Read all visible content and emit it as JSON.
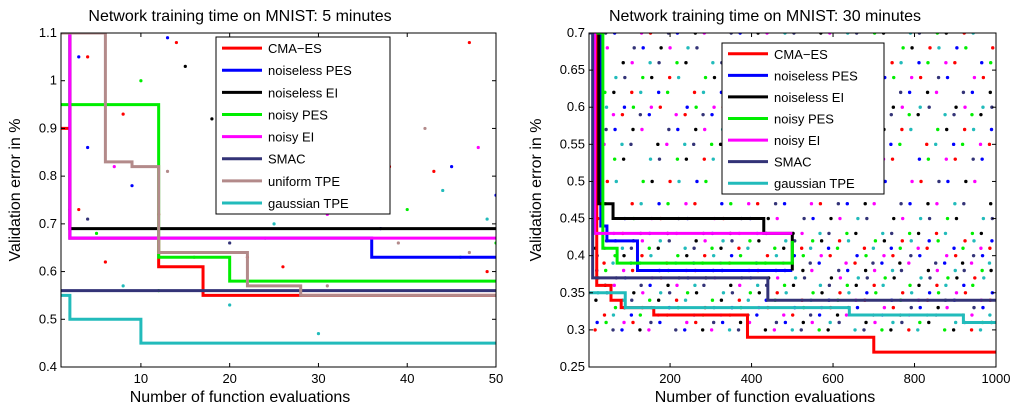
{
  "chart_data": [
    {
      "type": "line",
      "title": "Network training time on MNIST: 5 minutes",
      "xlabel": "Number of function evaluations",
      "ylabel": "Validation error in %",
      "xlim": [
        1,
        50
      ],
      "ylim": [
        0.4,
        1.1
      ],
      "xticks": [
        10,
        20,
        30,
        40,
        50
      ],
      "yticks": [
        0.4,
        0.5,
        0.6,
        0.7,
        0.8,
        0.9,
        1.0,
        1.1
      ],
      "ytick_labels": [
        "0.4",
        "0.5",
        "0.6",
        "0.7",
        "0.8",
        "0.9",
        "1",
        "1.1"
      ],
      "legend_position": "top-right",
      "series": [
        {
          "name": "CMA−ES",
          "color": "#ff0000",
          "steps": [
            [
              1,
              0.9
            ],
            [
              2,
              0.67
            ],
            [
              12,
              0.61
            ],
            [
              17,
              0.55
            ],
            [
              50,
              0.55
            ]
          ]
        },
        {
          "name": "noiseless PES",
          "color": "#0000ff",
          "steps": [
            [
              1,
              1.1
            ],
            [
              2,
              0.67
            ],
            [
              36,
              0.63
            ],
            [
              50,
              0.63
            ]
          ]
        },
        {
          "name": "noiseless EI",
          "color": "#000000",
          "steps": [
            [
              1,
              1.1
            ],
            [
              2,
              0.69
            ],
            [
              50,
              0.69
            ]
          ]
        },
        {
          "name": "noisy PES",
          "color": "#00ee00",
          "steps": [
            [
              1,
              0.95
            ],
            [
              11,
              0.95
            ],
            [
              12,
              0.63
            ],
            [
              20,
              0.58
            ],
            [
              50,
              0.58
            ]
          ]
        },
        {
          "name": "noisy EI",
          "color": "#ff00ff",
          "steps": [
            [
              1,
              1.1
            ],
            [
              2,
              0.67
            ],
            [
              50,
              0.67
            ]
          ]
        },
        {
          "name": "SMAC",
          "color": "#333377",
          "steps": [
            [
              1,
              0.56
            ],
            [
              50,
              0.56
            ]
          ]
        },
        {
          "name": "uniform TPE",
          "color": "#b38a8a",
          "steps": [
            [
              1,
              1.1
            ],
            [
              6,
              1.1
            ],
            [
              6,
              0.83
            ],
            [
              9,
              0.82
            ],
            [
              12,
              0.64
            ],
            [
              22,
              0.57
            ],
            [
              28,
              0.55
            ],
            [
              50,
              0.55
            ]
          ]
        },
        {
          "name": "gaussian TPE",
          "color": "#22bbbb",
          "steps": [
            [
              1,
              0.55
            ],
            [
              2,
              0.5
            ],
            [
              10,
              0.45
            ],
            [
              50,
              0.45
            ]
          ]
        }
      ],
      "scatter": [
        {
          "color": "#ff0000",
          "points": [
            [
              3,
              0.73
            ],
            [
              4,
              1.05
            ],
            [
              6,
              0.62
            ],
            [
              8,
              0.93
            ],
            [
              12,
              0.72
            ],
            [
              14,
              1.08
            ],
            [
              19,
              1.01
            ],
            [
              22,
              0.63
            ],
            [
              26,
              0.61
            ],
            [
              28,
              0.55
            ],
            [
              33,
              0.97
            ],
            [
              38,
              0.82
            ],
            [
              43,
              0.81
            ],
            [
              47,
              1.08
            ],
            [
              49,
              0.6
            ]
          ]
        },
        {
          "color": "#0000ff",
          "points": [
            [
              3,
              1.05
            ],
            [
              4,
              0.86
            ],
            [
              9,
              0.78
            ],
            [
              13,
              1.09
            ],
            [
              28,
              0.74
            ],
            [
              37,
              0.69
            ],
            [
              45,
              0.82
            ],
            [
              50,
              0.76
            ]
          ]
        },
        {
          "color": "#000000",
          "points": [
            [
              15,
              1.03
            ],
            [
              18,
              0.92
            ],
            [
              27,
              0.86
            ]
          ]
        },
        {
          "color": "#00ee00",
          "points": [
            [
              5,
              0.68
            ],
            [
              10,
              1.0
            ],
            [
              12,
              0.56
            ],
            [
              19,
              0.76
            ],
            [
              24,
              0.67
            ],
            [
              40,
              0.73
            ],
            [
              46,
              0.63
            ],
            [
              50,
              0.66
            ]
          ]
        },
        {
          "color": "#ff00ff",
          "points": [
            [
              2,
              0.73
            ],
            [
              7,
              0.82
            ],
            [
              19,
              0.95
            ],
            [
              26,
              0.93
            ],
            [
              31,
              0.72
            ],
            [
              35,
              1.01
            ],
            [
              48,
              0.86
            ]
          ]
        },
        {
          "color": "#333377",
          "points": [
            [
              4,
              0.71
            ],
            [
              20,
              0.66
            ],
            [
              36,
              0.75
            ]
          ]
        },
        {
          "color": "#b38a8a",
          "points": [
            [
              13,
              0.81
            ],
            [
              16,
              0.63
            ],
            [
              31,
              0.57
            ],
            [
              39,
              0.66
            ],
            [
              42,
              0.9
            ],
            [
              47,
              0.64
            ]
          ]
        },
        {
          "color": "#22bbbb",
          "points": [
            [
              8,
              0.57
            ],
            [
              20,
              0.53
            ],
            [
              25,
              0.7
            ],
            [
              30,
              0.47
            ],
            [
              44,
              0.77
            ],
            [
              49,
              0.71
            ]
          ]
        }
      ]
    },
    {
      "type": "line",
      "title": "Network training time on MNIST: 30 minutes",
      "xlabel": "Number of function evaluations",
      "ylabel": "Validation error in %",
      "xlim": [
        1,
        1000
      ],
      "ylim": [
        0.25,
        0.7
      ],
      "xticks": [
        200,
        400,
        600,
        800,
        1000
      ],
      "yticks": [
        0.25,
        0.3,
        0.35,
        0.4,
        0.45,
        0.5,
        0.55,
        0.6,
        0.65,
        0.7
      ],
      "ytick_labels": [
        "0.25",
        "0.3",
        "0.35",
        "0.4",
        "0.45",
        "0.5",
        "0.55",
        "0.6",
        "0.65",
        "0.7"
      ],
      "legend_position": "top-right",
      "series": [
        {
          "name": "CMA−ES",
          "color": "#ff0000",
          "steps": [
            [
              1,
              0.7
            ],
            [
              20,
              0.36
            ],
            [
              55,
              0.34
            ],
            [
              80,
              0.33
            ],
            [
              160,
              0.32
            ],
            [
              390,
              0.29
            ],
            [
              700,
              0.27
            ],
            [
              1000,
              0.27
            ]
          ]
        },
        {
          "name": "noiseless PES",
          "color": "#0000ff",
          "steps": [
            [
              1,
              0.7
            ],
            [
              30,
              0.44
            ],
            [
              45,
              0.42
            ],
            [
              120,
              0.38
            ],
            [
              500,
              0.38
            ]
          ]
        },
        {
          "name": "noiseless EI",
          "color": "#000000",
          "steps": [
            [
              1,
              0.7
            ],
            [
              25,
              0.47
            ],
            [
              60,
              0.45
            ],
            [
              430,
              0.43
            ],
            [
              500,
              0.38
            ]
          ]
        },
        {
          "name": "noisy PES",
          "color": "#00ee00",
          "steps": [
            [
              1,
              0.7
            ],
            [
              35,
              0.41
            ],
            [
              70,
              0.39
            ],
            [
              500,
              0.42
            ]
          ]
        },
        {
          "name": "noisy EI",
          "color": "#ff00ff",
          "steps": [
            [
              1,
              0.7
            ],
            [
              15,
              0.43
            ],
            [
              500,
              0.43
            ]
          ]
        },
        {
          "name": "SMAC",
          "color": "#333377",
          "steps": [
            [
              1,
              0.7
            ],
            [
              10,
              0.37
            ],
            [
              440,
              0.34
            ],
            [
              1000,
              0.34
            ]
          ]
        },
        {
          "name": "gaussian TPE",
          "color": "#22bbbb",
          "steps": [
            [
              1,
              0.35
            ],
            [
              90,
              0.33
            ],
            [
              640,
              0.32
            ],
            [
              920,
              0.31
            ],
            [
              1000,
              0.31
            ]
          ]
        }
      ],
      "scatter_columns": {
        "x_start": 20,
        "x_step": 22,
        "y_levels": [
          0.3,
          0.31,
          0.32,
          0.33,
          0.34,
          0.35,
          0.36,
          0.37,
          0.38,
          0.39,
          0.4,
          0.41,
          0.42,
          0.43,
          0.45,
          0.47,
          0.5,
          0.53,
          0.55,
          0.57,
          0.59,
          0.6,
          0.62,
          0.64,
          0.66,
          0.68,
          0.7
        ],
        "colors": [
          "#ff0000",
          "#22bbbb",
          "#333377",
          "#0000ff",
          "#00ee00",
          "#000000",
          "#ff00ff"
        ]
      }
    }
  ]
}
